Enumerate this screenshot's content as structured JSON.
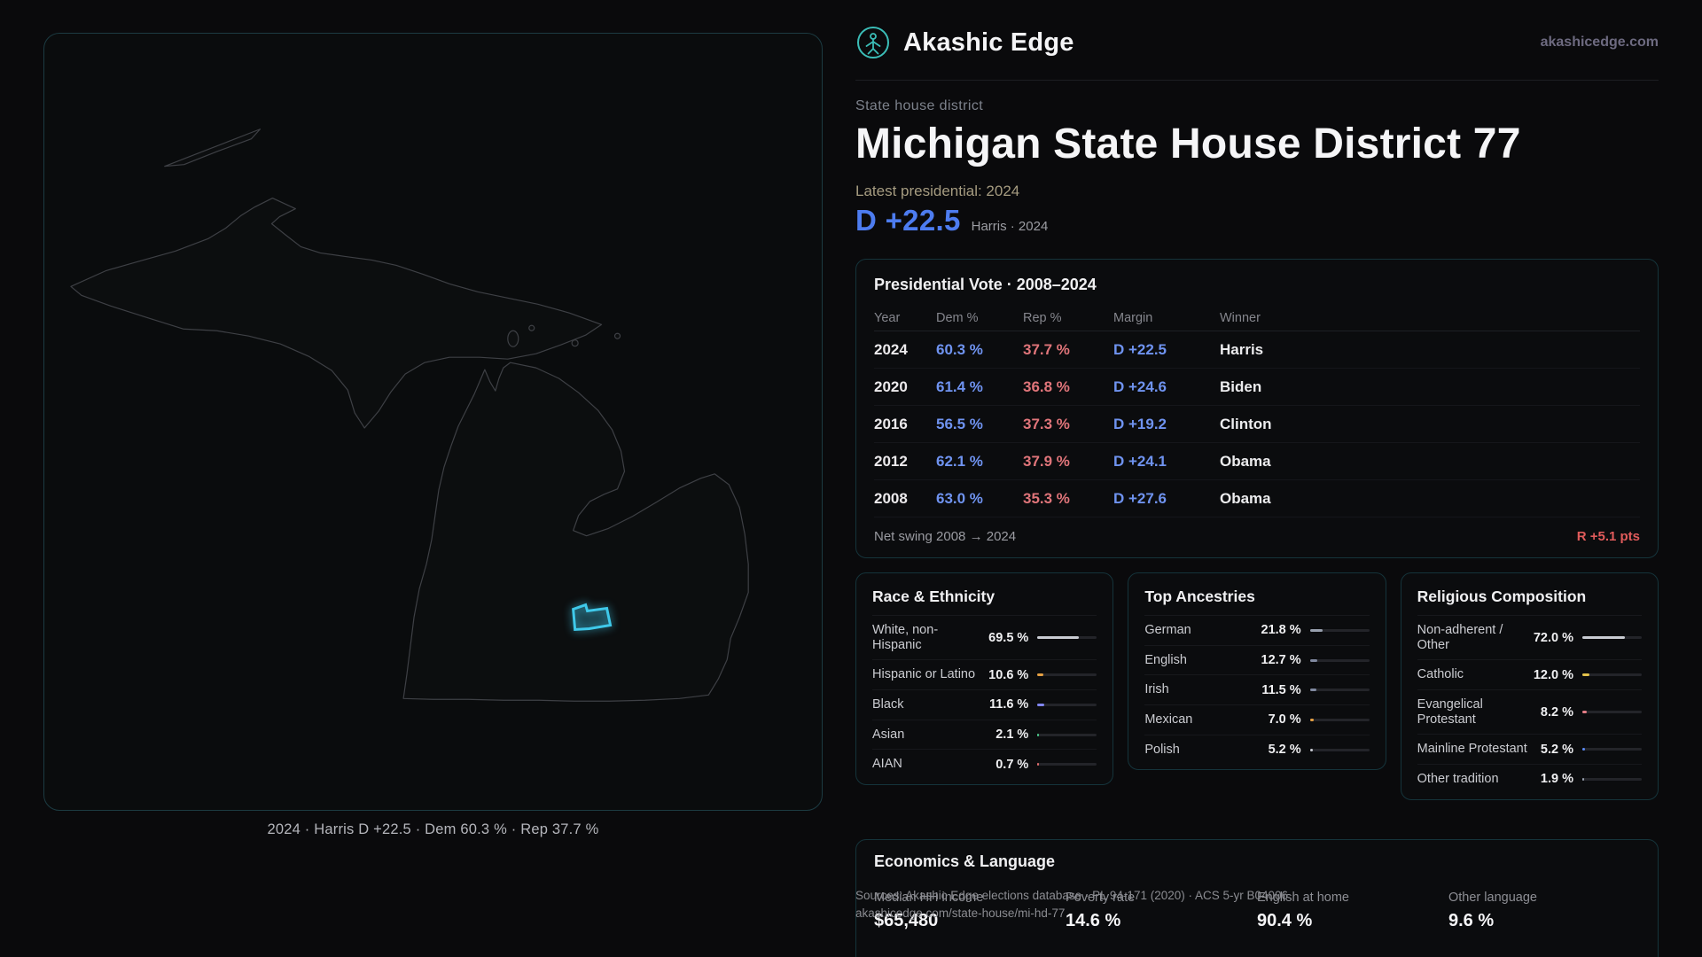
{
  "brand": {
    "name": "Akashic Edge",
    "domain": "akashicedge.com"
  },
  "hero": {
    "kicker": "State house district",
    "title": "Michigan State House District 77",
    "latest_label": "Latest presidential: 2024",
    "margin_value": "D +22.5",
    "margin_note": "Harris · 2024"
  },
  "map": {
    "caption": "2024 · Harris D +22.5 · Dem 60.3 % · Rep 37.7 %",
    "district_color": "#3fc9ea"
  },
  "presidential": {
    "title": "Presidential Vote · 2008–2024",
    "columns": {
      "year": "Year",
      "dem": "Dem %",
      "rep": "Rep %",
      "margin": "Margin",
      "winner": "Winner"
    },
    "rows": [
      {
        "year": "2024",
        "dem": "60.3 %",
        "rep": "37.7 %",
        "margin": "D +22.5",
        "winner": "Harris"
      },
      {
        "year": "2020",
        "dem": "61.4 %",
        "rep": "36.8 %",
        "margin": "D +24.6",
        "winner": "Biden"
      },
      {
        "year": "2016",
        "dem": "56.5 %",
        "rep": "37.3 %",
        "margin": "D +19.2",
        "winner": "Clinton"
      },
      {
        "year": "2012",
        "dem": "62.1 %",
        "rep": "37.9 %",
        "margin": "D +24.1",
        "winner": "Obama"
      },
      {
        "year": "2008",
        "dem": "63.0 %",
        "rep": "35.3 %",
        "margin": "D +27.6",
        "winner": "Obama"
      }
    ],
    "net_swing_label": "Net swing 2008 → 2024",
    "net_swing_value": "R +5.1 pts"
  },
  "race": {
    "title": "Race & Ethnicity",
    "rows": [
      {
        "label": "White, non-Hispanic",
        "value": "69.5 %",
        "pct": 69.5,
        "color": "#c9ccd3"
      },
      {
        "label": "Hispanic or Latino",
        "value": "10.6 %",
        "pct": 10.6,
        "color": "#e5a043"
      },
      {
        "label": "Black",
        "value": "11.6 %",
        "pct": 11.6,
        "color": "#8186f2"
      },
      {
        "label": "Asian",
        "value": "2.1 %",
        "pct": 2.1,
        "color": "#4bc88b"
      },
      {
        "label": "AIAN",
        "value": "0.7 %",
        "pct": 0.7,
        "color": "#e06c6c"
      }
    ]
  },
  "ancestries": {
    "title": "Top Ancestries",
    "rows": [
      {
        "label": "German",
        "value": "21.8 %",
        "pct": 21.8,
        "color": "#98a0ae"
      },
      {
        "label": "English",
        "value": "12.7 %",
        "pct": 12.7,
        "color": "#8089a0"
      },
      {
        "label": "Irish",
        "value": "11.5 %",
        "pct": 11.5,
        "color": "#8089a0"
      },
      {
        "label": "Mexican",
        "value": "7.0 %",
        "pct": 7.0,
        "color": "#e5a043"
      },
      {
        "label": "Polish",
        "value": "5.2 %",
        "pct": 5.2,
        "color": "#c9ccd3"
      }
    ]
  },
  "religion": {
    "title": "Religious Composition",
    "rows": [
      {
        "label": "Non-adherent / Other",
        "value": "72.0 %",
        "pct": 72.0,
        "color": "#c9ccd3"
      },
      {
        "label": "Catholic",
        "value": "12.0 %",
        "pct": 12.0,
        "color": "#e3c24a"
      },
      {
        "label": "Evangelical Protestant",
        "value": "8.2 %",
        "pct": 8.2,
        "color": "#e57d86"
      },
      {
        "label": "Mainline Protestant",
        "value": "5.2 %",
        "pct": 5.2,
        "color": "#5b8af5"
      },
      {
        "label": "Other tradition",
        "value": "1.9 %",
        "pct": 1.9,
        "color": "#98a0ae"
      }
    ]
  },
  "economics": {
    "title": "Economics & Language",
    "stats": [
      {
        "label": "Median HH income",
        "value": "$65,480"
      },
      {
        "label": "Poverty rate",
        "value": "14.6 %"
      },
      {
        "label": "English at home",
        "value": "90.4 %"
      },
      {
        "label": "Other language",
        "value": "9.6 %"
      }
    ]
  },
  "footer": {
    "line1": "Sources: Akashic Edge elections database · PL 94-171 (2020) · ACS 5-yr B04006",
    "line2": "akashicedge.com/state-house/mi-hd-77"
  }
}
